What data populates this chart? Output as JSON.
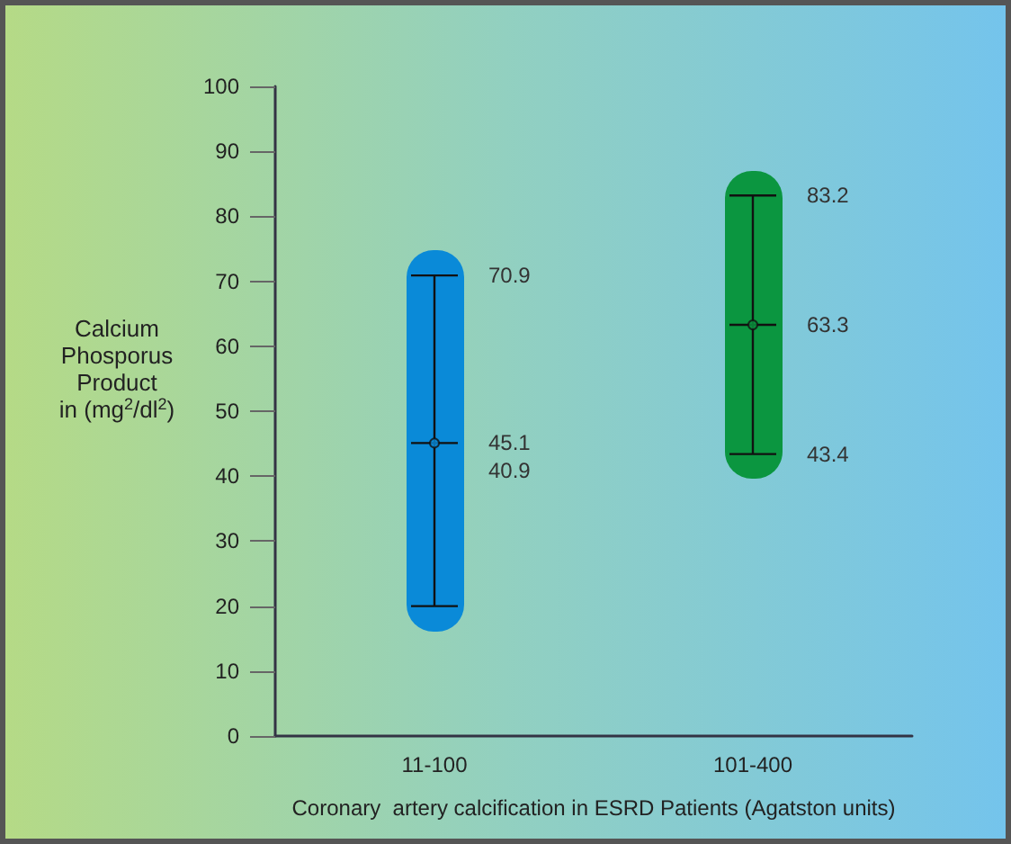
{
  "chart_data": {
    "type": "scatter",
    "categories": [
      "11-100",
      "101-400"
    ],
    "series": [
      {
        "color": "#0a8ad8",
        "values": [
          45.1,
          null
        ],
        "errors": [
          [
            20,
            70.9
          ],
          null
        ]
      },
      {
        "color": "#0b9640",
        "values": [
          null,
          63.3
        ],
        "errors": [
          null,
          [
            43.4,
            83.2
          ]
        ]
      }
    ],
    "xlabel": "Coronary  artery calcification in ESRD Patients (Agatston units)",
    "ylabel": "Calcium\nPhosporus\nProduct\nin (mg$^{2}$/dl$^{2}$)",
    "ylim": [
      0,
      100
    ],
    "yticks": [
      0,
      10,
      20,
      30,
      40,
      50,
      60,
      70,
      80,
      90,
      100
    ],
    "grid": false,
    "marker": "circle",
    "annotations": [
      {
        "text": "70.9",
        "x": "11-100",
        "y": 70.9
      },
      {
        "text": "45.1",
        "x": "11-100",
        "y": 45.1
      },
      {
        "text": "40.9",
        "x": "11-100",
        "y": 40.9
      },
      {
        "text": "83.2",
        "x": "101-400",
        "y": 83.2
      },
      {
        "text": "63.3",
        "x": "101-400",
        "y": 63.3
      },
      {
        "text": "43.4",
        "x": "101-400",
        "y": 43.4
      }
    ]
  }
}
